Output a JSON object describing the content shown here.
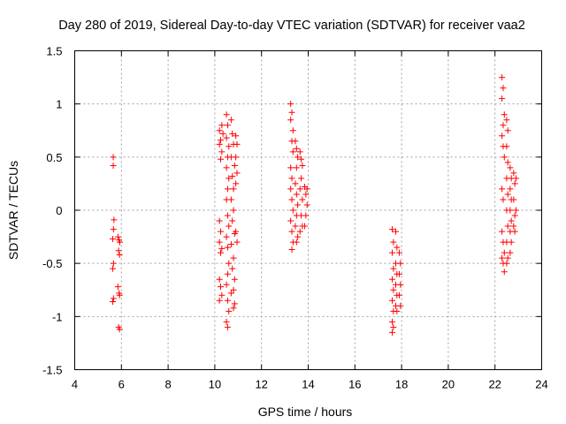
{
  "chart_data": {
    "type": "scatter",
    "title": "Day 280 of 2019, Sidereal Day-to-day VTEC variation (SDTVAR) for receiver vaa2",
    "xlabel": "GPS time / hours",
    "ylabel": "SDTVAR / TECUs",
    "xlim": [
      4,
      24
    ],
    "ylim": [
      -1.5,
      1.5
    ],
    "xticks": [
      "4",
      "6",
      "8",
      "10",
      "12",
      "14",
      "16",
      "18",
      "20",
      "22",
      "24"
    ],
    "yticks": [
      "1.5",
      "1",
      "0.5",
      "0",
      "-0.5",
      "-1",
      "-1.5"
    ],
    "grid": true,
    "marker": "+",
    "color": "#ff0000",
    "series": [
      {
        "name": "SDTVAR",
        "points": [
          [
            5.65,
            0.5
          ],
          [
            5.65,
            0.42
          ],
          [
            5.68,
            -0.09
          ],
          [
            5.66,
            -0.18
          ],
          [
            5.63,
            -0.27
          ],
          [
            5.66,
            -0.5
          ],
          [
            5.63,
            -0.55
          ],
          [
            5.66,
            -0.83
          ],
          [
            5.63,
            -0.86
          ],
          [
            5.85,
            -0.25
          ],
          [
            5.9,
            -0.28
          ],
          [
            5.93,
            -0.3
          ],
          [
            5.88,
            -0.38
          ],
          [
            5.92,
            -0.42
          ],
          [
            5.85,
            -0.72
          ],
          [
            5.9,
            -0.78
          ],
          [
            5.92,
            -0.8
          ],
          [
            5.88,
            -1.1
          ],
          [
            5.92,
            -1.12
          ],
          [
            10.2,
            0.75
          ],
          [
            10.25,
            0.66
          ],
          [
            10.2,
            0.62
          ],
          [
            10.3,
            0.8
          ],
          [
            10.35,
            0.72
          ],
          [
            10.3,
            0.55
          ],
          [
            10.25,
            0.48
          ],
          [
            10.2,
            -0.1
          ],
          [
            10.25,
            -0.2
          ],
          [
            10.2,
            -0.3
          ],
          [
            10.3,
            -0.36
          ],
          [
            10.25,
            -0.4
          ],
          [
            10.2,
            -0.65
          ],
          [
            10.25,
            -0.72
          ],
          [
            10.3,
            -0.8
          ],
          [
            10.2,
            -0.85
          ],
          [
            10.5,
            0.9
          ],
          [
            10.55,
            0.8
          ],
          [
            10.5,
            0.68
          ],
          [
            10.6,
            0.6
          ],
          [
            10.55,
            0.5
          ],
          [
            10.5,
            0.4
          ],
          [
            10.6,
            0.3
          ],
          [
            10.55,
            0.2
          ],
          [
            10.5,
            0.1
          ],
          [
            10.55,
            -0.05
          ],
          [
            10.6,
            -0.15
          ],
          [
            10.5,
            -0.25
          ],
          [
            10.55,
            -0.35
          ],
          [
            10.6,
            -0.5
          ],
          [
            10.55,
            -0.6
          ],
          [
            10.5,
            -0.7
          ],
          [
            10.55,
            -0.85
          ],
          [
            10.6,
            -0.95
          ],
          [
            10.5,
            -1.05
          ],
          [
            10.55,
            -1.1
          ],
          [
            10.7,
            0.85
          ],
          [
            10.75,
            0.72
          ],
          [
            10.8,
            0.62
          ],
          [
            10.7,
            0.5
          ],
          [
            10.85,
            0.42
          ],
          [
            10.75,
            0.32
          ],
          [
            10.8,
            0.2
          ],
          [
            10.7,
            0.1
          ],
          [
            10.8,
            0.0
          ],
          [
            10.75,
            -0.1
          ],
          [
            10.85,
            -0.22
          ],
          [
            10.7,
            -0.32
          ],
          [
            10.8,
            -0.45
          ],
          [
            10.75,
            -0.55
          ],
          [
            10.85,
            -0.65
          ],
          [
            10.8,
            -0.75
          ],
          [
            10.7,
            -0.78
          ],
          [
            10.85,
            -0.88
          ],
          [
            10.8,
            -0.92
          ],
          [
            10.9,
            0.7
          ],
          [
            10.95,
            0.62
          ],
          [
            10.9,
            0.5
          ],
          [
            10.95,
            0.35
          ],
          [
            10.9,
            0.25
          ],
          [
            10.95,
            -0.3
          ],
          [
            10.9,
            -0.2
          ],
          [
            13.25,
            1.0
          ],
          [
            13.3,
            0.92
          ],
          [
            13.25,
            0.85
          ],
          [
            13.35,
            0.75
          ],
          [
            13.3,
            0.65
          ],
          [
            13.35,
            0.55
          ],
          [
            13.25,
            0.4
          ],
          [
            13.3,
            0.3
          ],
          [
            13.25,
            0.2
          ],
          [
            13.3,
            0.1
          ],
          [
            13.35,
            0.0
          ],
          [
            13.25,
            -0.1
          ],
          [
            13.3,
            -0.2
          ],
          [
            13.35,
            -0.3
          ],
          [
            13.3,
            -0.37
          ],
          [
            13.45,
            0.65
          ],
          [
            13.5,
            0.58
          ],
          [
            13.55,
            0.5
          ],
          [
            13.5,
            0.4
          ],
          [
            13.45,
            0.25
          ],
          [
            13.5,
            0.15
          ],
          [
            13.55,
            0.05
          ],
          [
            13.5,
            -0.05
          ],
          [
            13.45,
            -0.15
          ],
          [
            13.55,
            -0.25
          ],
          [
            13.5,
            -0.3
          ],
          [
            13.65,
            0.55
          ],
          [
            13.7,
            0.48
          ],
          [
            13.75,
            0.42
          ],
          [
            13.7,
            0.3
          ],
          [
            13.65,
            0.2
          ],
          [
            13.75,
            0.1
          ],
          [
            13.7,
            -0.05
          ],
          [
            13.75,
            -0.15
          ],
          [
            13.65,
            -0.2
          ],
          [
            13.85,
            0.22
          ],
          [
            13.9,
            0.15
          ],
          [
            13.95,
            0.05
          ],
          [
            13.9,
            -0.05
          ],
          [
            13.85,
            -0.15
          ],
          [
            13.95,
            0.2
          ],
          [
            17.6,
            -0.18
          ],
          [
            17.65,
            -0.3
          ],
          [
            17.6,
            -0.4
          ],
          [
            17.65,
            -0.55
          ],
          [
            17.6,
            -0.65
          ],
          [
            17.65,
            -0.75
          ],
          [
            17.6,
            -0.85
          ],
          [
            17.65,
            -0.95
          ],
          [
            17.6,
            -1.05
          ],
          [
            17.65,
            -1.1
          ],
          [
            17.6,
            -1.15
          ],
          [
            17.75,
            -0.2
          ],
          [
            17.8,
            -0.35
          ],
          [
            17.75,
            -0.5
          ],
          [
            17.8,
            -0.6
          ],
          [
            17.75,
            -0.7
          ],
          [
            17.8,
            -0.8
          ],
          [
            17.75,
            -0.9
          ],
          [
            17.8,
            -0.95
          ],
          [
            17.9,
            -0.4
          ],
          [
            17.95,
            -0.5
          ],
          [
            17.9,
            -0.6
          ],
          [
            17.95,
            -0.7
          ],
          [
            17.9,
            -0.8
          ],
          [
            17.95,
            -0.9
          ],
          [
            22.3,
            1.25
          ],
          [
            22.35,
            1.15
          ],
          [
            22.3,
            1.05
          ],
          [
            22.4,
            0.9
          ],
          [
            22.35,
            0.8
          ],
          [
            22.3,
            0.7
          ],
          [
            22.35,
            0.6
          ],
          [
            22.4,
            0.5
          ],
          [
            22.3,
            0.2
          ],
          [
            22.35,
            0.1
          ],
          [
            22.3,
            -0.2
          ],
          [
            22.35,
            -0.3
          ],
          [
            22.4,
            -0.4
          ],
          [
            22.3,
            -0.45
          ],
          [
            22.35,
            -0.5
          ],
          [
            22.4,
            -0.58
          ],
          [
            22.5,
            0.85
          ],
          [
            22.55,
            0.75
          ],
          [
            22.5,
            0.6
          ],
          [
            22.55,
            0.45
          ],
          [
            22.5,
            0.3
          ],
          [
            22.55,
            0.15
          ],
          [
            22.5,
            0.0
          ],
          [
            22.55,
            -0.15
          ],
          [
            22.5,
            -0.3
          ],
          [
            22.55,
            -0.45
          ],
          [
            22.5,
            -0.5
          ],
          [
            22.65,
            0.4
          ],
          [
            22.7,
            0.3
          ],
          [
            22.65,
            0.2
          ],
          [
            22.7,
            0.1
          ],
          [
            22.65,
            0.0
          ],
          [
            22.7,
            -0.1
          ],
          [
            22.65,
            -0.2
          ],
          [
            22.7,
            -0.3
          ],
          [
            22.65,
            -0.4
          ],
          [
            22.8,
            0.35
          ],
          [
            22.85,
            0.25
          ],
          [
            22.8,
            0.1
          ],
          [
            22.85,
            -0.05
          ],
          [
            22.8,
            -0.15
          ],
          [
            22.85,
            -0.2
          ],
          [
            22.9,
            0.0
          ],
          [
            22.9,
            0.3
          ]
        ]
      }
    ]
  }
}
